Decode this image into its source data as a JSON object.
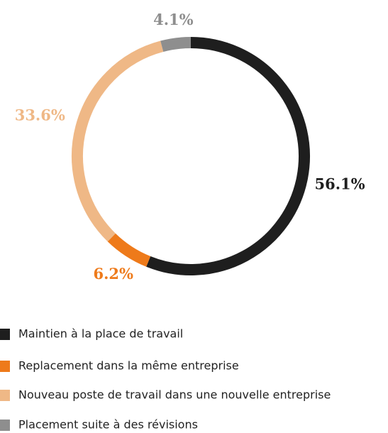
{
  "chart_data": {
    "type": "donut",
    "categories": [
      "Maintien à la place de travail",
      "Replacement dans la même entreprise",
      "Nouveau poste de travail dans une nouvelle entreprise",
      "Placement suite à des révisions"
    ],
    "values": [
      56.1,
      6.2,
      33.6,
      4.1
    ],
    "value_labels": [
      "56.1%",
      "6.2%",
      "33.6%",
      "4.1%"
    ],
    "colors": [
      "#1e1e1e",
      "#ee7a1a",
      "#efb886",
      "#8e8e8e"
    ]
  }
}
